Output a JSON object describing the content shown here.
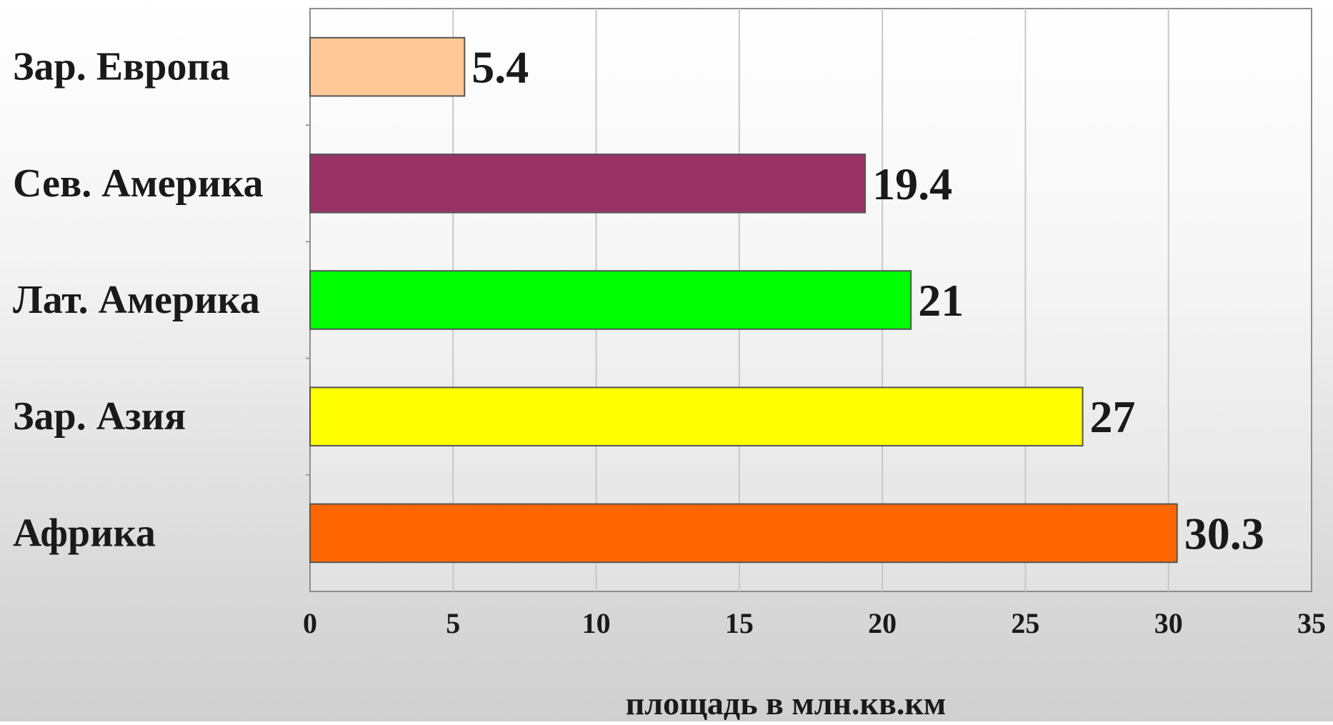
{
  "chart_data": {
    "type": "bar",
    "orientation": "horizontal",
    "title": "",
    "xlabel": "площадь в млн.кв.км",
    "ylabel": "",
    "xlim": [
      0,
      35
    ],
    "x_ticks": [
      0,
      5,
      10,
      15,
      20,
      25,
      30,
      35
    ],
    "categories": [
      "Зар. Европа",
      "Сев. Америка",
      "Лат. Америка",
      "Зар. Азия",
      "Африка"
    ],
    "values": [
      5.4,
      19.4,
      21,
      27,
      30.3
    ],
    "value_labels": [
      "5.4",
      "19.4",
      "21",
      "27",
      "30.3"
    ],
    "colors": [
      "#ffc896",
      "#993366",
      "#00ff00",
      "#ffff00",
      "#ff6600"
    ],
    "grid": true,
    "grid_axis": "x",
    "legend": "none"
  }
}
